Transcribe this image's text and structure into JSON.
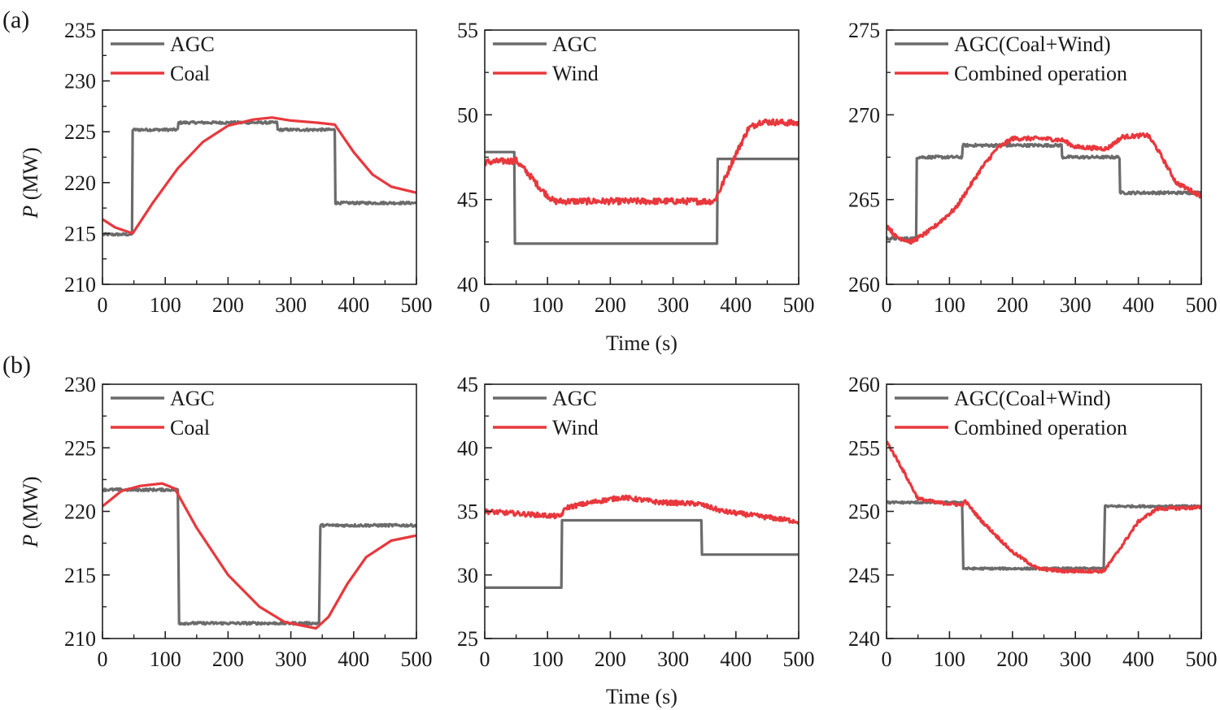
{
  "figure": {
    "row_labels": [
      "(a)",
      "(b)"
    ],
    "y_axis_label_italic": "P",
    "y_axis_label_unit": " (MW)",
    "x_axis_label": "Time (s)"
  },
  "colors": {
    "agc": "#6b6b6b",
    "output": "#e8383d",
    "axis": "#222222"
  },
  "chart_data": [
    {
      "type": "line",
      "row": "(a)",
      "xlim": [
        0,
        500
      ],
      "xticks": [
        0,
        100,
        200,
        300,
        400,
        500
      ],
      "ylim": [
        210,
        235
      ],
      "yticks": [
        210,
        215,
        220,
        225,
        230,
        235
      ],
      "series": [
        {
          "name": "AGC",
          "color": "#6b6b6b",
          "noise": 0.12,
          "points": [
            [
              0,
              214.9
            ],
            [
              47,
              214.9
            ],
            [
              48,
              225.2
            ],
            [
              120,
              225.2
            ],
            [
              121,
              225.9
            ],
            [
              278,
              225.9
            ],
            [
              279,
              225.2
            ],
            [
              370,
              225.2
            ],
            [
              371,
              218.0
            ],
            [
              500,
              218.0
            ]
          ]
        },
        {
          "name": "Coal",
          "color": "#e8383d",
          "noise": 0,
          "points": [
            [
              0,
              216.4
            ],
            [
              20,
              215.6
            ],
            [
              48,
              215.0
            ],
            [
              80,
              218.0
            ],
            [
              120,
              221.4
            ],
            [
              160,
              224.0
            ],
            [
              200,
              225.6
            ],
            [
              240,
              226.2
            ],
            [
              270,
              226.4
            ],
            [
              300,
              226.1
            ],
            [
              340,
              225.9
            ],
            [
              370,
              225.7
            ],
            [
              400,
              223.0
            ],
            [
              430,
              220.8
            ],
            [
              460,
              219.6
            ],
            [
              500,
              219.0
            ]
          ]
        }
      ]
    },
    {
      "type": "line",
      "row": "(a)",
      "xlim": [
        0,
        500
      ],
      "xticks": [
        0,
        100,
        200,
        300,
        400,
        500
      ],
      "ylim": [
        40,
        55
      ],
      "yticks": [
        40,
        45,
        50,
        55
      ],
      "series": [
        {
          "name": "AGC",
          "color": "#6b6b6b",
          "noise": 0,
          "points": [
            [
              0,
              47.8
            ],
            [
              47,
              47.8
            ],
            [
              48,
              42.4
            ],
            [
              370,
              42.4
            ],
            [
              371,
              47.4
            ],
            [
              500,
              47.4
            ]
          ]
        },
        {
          "name": "Wind",
          "color": "#e8383d",
          "noise": 0.18,
          "points": [
            [
              0,
              47.2
            ],
            [
              50,
              47.3
            ],
            [
              70,
              46.5
            ],
            [
              90,
              45.6
            ],
            [
              110,
              44.9
            ],
            [
              200,
              44.9
            ],
            [
              300,
              44.9
            ],
            [
              365,
              44.9
            ],
            [
              375,
              45.6
            ],
            [
              395,
              47.3
            ],
            [
              420,
              49.2
            ],
            [
              440,
              49.6
            ],
            [
              500,
              49.5
            ]
          ]
        }
      ]
    },
    {
      "type": "line",
      "row": "(a)",
      "xlim": [
        0,
        500
      ],
      "xticks": [
        0,
        100,
        200,
        300,
        400,
        500
      ],
      "ylim": [
        260,
        275
      ],
      "yticks": [
        260,
        265,
        270,
        275
      ],
      "series": [
        {
          "name": "AGC(Coal+Wind)",
          "color": "#6b6b6b",
          "noise": 0.08,
          "points": [
            [
              0,
              262.7
            ],
            [
              47,
              262.7
            ],
            [
              48,
              267.5
            ],
            [
              120,
              267.5
            ],
            [
              121,
              268.2
            ],
            [
              278,
              268.2
            ],
            [
              279,
              267.5
            ],
            [
              370,
              267.5
            ],
            [
              371,
              265.4
            ],
            [
              500,
              265.4
            ]
          ]
        },
        {
          "name": "Combined operation",
          "color": "#e8383d",
          "noise": 0.12,
          "points": [
            [
              0,
              263.5
            ],
            [
              15,
              262.8
            ],
            [
              40,
              262.5
            ],
            [
              70,
              263.2
            ],
            [
              110,
              264.5
            ],
            [
              150,
              266.8
            ],
            [
              175,
              268.0
            ],
            [
              200,
              268.6
            ],
            [
              250,
              268.6
            ],
            [
              280,
              268.5
            ],
            [
              300,
              268.1
            ],
            [
              350,
              268.0
            ],
            [
              375,
              268.7
            ],
            [
              415,
              268.8
            ],
            [
              430,
              268.0
            ],
            [
              460,
              266.0
            ],
            [
              480,
              265.6
            ],
            [
              500,
              265.2
            ]
          ]
        }
      ]
    },
    {
      "type": "line",
      "row": "(b)",
      "xlim": [
        0,
        500
      ],
      "xticks": [
        0,
        100,
        200,
        300,
        400,
        500
      ],
      "ylim": [
        210,
        230
      ],
      "yticks": [
        210,
        215,
        220,
        225,
        230
      ],
      "series": [
        {
          "name": "AGC",
          "color": "#6b6b6b",
          "noise": 0.1,
          "points": [
            [
              0,
              221.7
            ],
            [
              120,
              221.7
            ],
            [
              122,
              211.2
            ],
            [
              345,
              211.2
            ],
            [
              347,
              218.9
            ],
            [
              500,
              218.9
            ]
          ]
        },
        {
          "name": "Coal",
          "color": "#e8383d",
          "noise": 0,
          "points": [
            [
              0,
              220.4
            ],
            [
              30,
              221.6
            ],
            [
              60,
              222.0
            ],
            [
              95,
              222.2
            ],
            [
              115,
              221.8
            ],
            [
              150,
              218.7
            ],
            [
              200,
              215.0
            ],
            [
              250,
              212.5
            ],
            [
              290,
              211.3
            ],
            [
              340,
              210.8
            ],
            [
              360,
              211.7
            ],
            [
              390,
              214.3
            ],
            [
              420,
              216.4
            ],
            [
              460,
              217.7
            ],
            [
              500,
              218.1
            ]
          ]
        }
      ]
    },
    {
      "type": "line",
      "row": "(b)",
      "xlim": [
        0,
        500
      ],
      "xticks": [
        0,
        100,
        200,
        300,
        400,
        500
      ],
      "ylim": [
        25,
        45
      ],
      "yticks": [
        25,
        30,
        35,
        40,
        45
      ],
      "series": [
        {
          "name": "AGC",
          "color": "#6b6b6b",
          "noise": 0,
          "points": [
            [
              0,
              29.0
            ],
            [
              122,
              29.0
            ],
            [
              123,
              34.3
            ],
            [
              345,
              34.3
            ],
            [
              346,
              31.6
            ],
            [
              500,
              31.6
            ]
          ]
        },
        {
          "name": "Wind",
          "color": "#e8383d",
          "noise": 0.18,
          "points": [
            [
              0,
              35.0
            ],
            [
              60,
              34.8
            ],
            [
              120,
              34.6
            ],
            [
              130,
              35.3
            ],
            [
              180,
              35.8
            ],
            [
              220,
              36.1
            ],
            [
              280,
              35.7
            ],
            [
              340,
              35.6
            ],
            [
              380,
              35.0
            ],
            [
              440,
              34.6
            ],
            [
              500,
              34.2
            ]
          ]
        }
      ]
    },
    {
      "type": "line",
      "row": "(b)",
      "xlim": [
        0,
        500
      ],
      "xticks": [
        0,
        100,
        200,
        300,
        400,
        500
      ],
      "ylim": [
        240,
        260
      ],
      "yticks": [
        240,
        245,
        250,
        255,
        260
      ],
      "series": [
        {
          "name": "AGC(Coal+Wind)",
          "color": "#6b6b6b",
          "noise": 0.08,
          "points": [
            [
              0,
              250.7
            ],
            [
              120,
              250.7
            ],
            [
              122,
              245.5
            ],
            [
              345,
              245.5
            ],
            [
              347,
              250.4
            ],
            [
              500,
              250.4
            ]
          ]
        },
        {
          "name": "Combined operation",
          "color": "#e8383d",
          "noise": 0.12,
          "points": [
            [
              0,
              255.5
            ],
            [
              20,
              253.8
            ],
            [
              50,
              251.0
            ],
            [
              80,
              250.7
            ],
            [
              120,
              250.5
            ],
            [
              125,
              250.8
            ],
            [
              150,
              249.3
            ],
            [
              200,
              246.8
            ],
            [
              240,
              245.5
            ],
            [
              280,
              245.3
            ],
            [
              345,
              245.3
            ],
            [
              360,
              246.3
            ],
            [
              400,
              249.2
            ],
            [
              430,
              250.2
            ],
            [
              500,
              250.3
            ]
          ]
        }
      ]
    }
  ]
}
